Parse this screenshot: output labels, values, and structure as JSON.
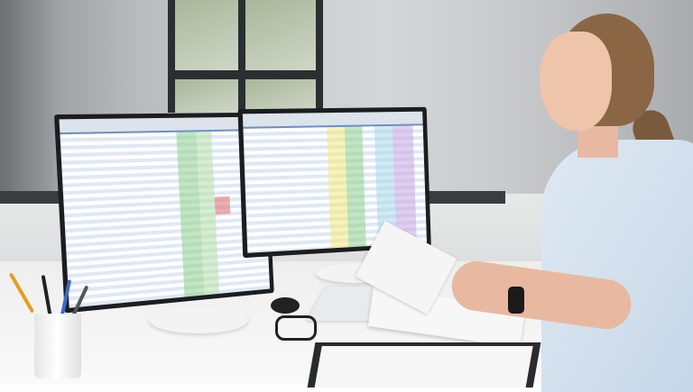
{
  "scene": {
    "colors": {
      "wall": "#c7c9cb",
      "desk": "#f4f4f4",
      "scrubs": "#d3e1ee",
      "monitor_bezel": "#1c1d1f",
      "spreadsheet_header": "#6b8fc9",
      "highlight_green": "#8fd28a",
      "highlight_yellow": "#f2ea7a",
      "highlight_purple": "#c9a6e0",
      "highlight_red": "#e06a6a"
    }
  }
}
